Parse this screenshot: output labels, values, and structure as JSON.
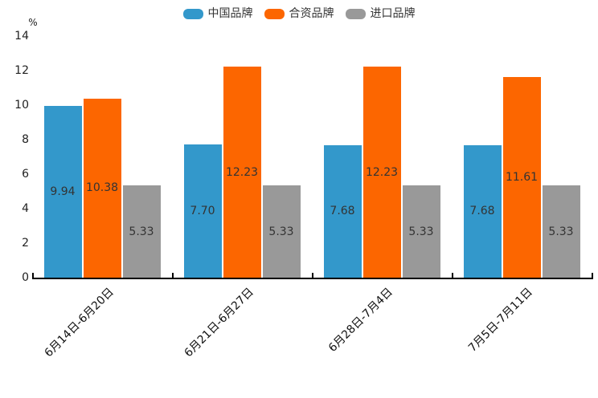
{
  "chart_data": {
    "type": "bar",
    "title": "",
    "ylabel": "%",
    "xlabel": "",
    "ylim": [
      0,
      14
    ],
    "yticks": [
      0,
      2,
      4,
      6,
      8,
      10,
      12,
      14
    ],
    "grid": false,
    "legend_position": "top",
    "categories": [
      "6月14日-6月20日",
      "6月21日-6月27日",
      "6月28日-7月4日",
      "7月5日-7月11日"
    ],
    "series": [
      {
        "name": "中国品牌",
        "color": "#3398CB",
        "values": [
          9.94,
          7.7,
          7.68,
          7.68
        ]
      },
      {
        "name": "合资品牌",
        "color": "#FC6600",
        "values": [
          10.38,
          12.23,
          12.23,
          11.61
        ]
      },
      {
        "name": "进口品牌",
        "color": "#999999",
        "values": [
          5.33,
          5.33,
          5.33,
          5.33
        ]
      }
    ],
    "value_label_format": "2-decimals",
    "axis_color": "#000000",
    "label_color": "#333333"
  }
}
